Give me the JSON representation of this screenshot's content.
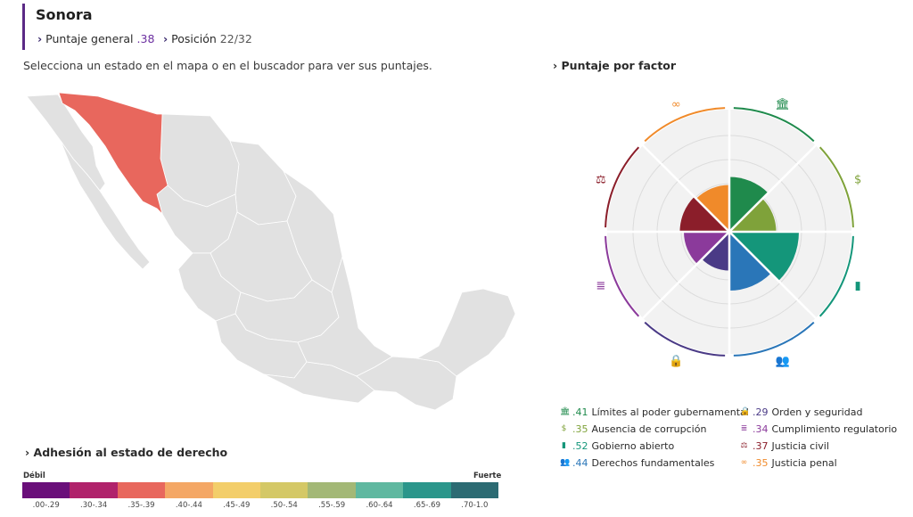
{
  "header": {
    "state_name": "Sonora",
    "overall_label": "Puntaje general",
    "overall_value": ".38",
    "position_label": "Posición",
    "position_value": "22/32"
  },
  "instruction": "Selecciona un estado en el mapa o en el buscador para ver sus puntajes.",
  "factors_heading": "Puntaje por factor",
  "adhesion_heading": "Adhesión al estado de derecho",
  "scale": {
    "weak_label": "Débil",
    "strong_label": "Fuerte",
    "bins": [
      {
        "label": ".00-.29",
        "color": "#6a0f7a"
      },
      {
        "label": ".30-.34",
        "color": "#b0226b"
      },
      {
        "label": ".35-.39",
        "color": "#e8675d"
      },
      {
        "label": ".40-.44",
        "color": "#f4a765"
      },
      {
        "label": ".45-.49",
        "color": "#f3ce6a"
      },
      {
        "label": ".50-.54",
        "color": "#d4c866"
      },
      {
        "label": ".55-.59",
        "color": "#a3b876"
      },
      {
        "label": ".60-.64",
        "color": "#5fb8a0"
      },
      {
        "label": ".65-.69",
        "color": "#2b968b"
      },
      {
        "label": ".70-1.0",
        "color": "#2c6b73"
      }
    ]
  },
  "map": {
    "highlight_color": "#e8675d",
    "base_color": "#e1e1e1",
    "border_color": "#ffffff"
  },
  "factors": [
    {
      "value": ".41",
      "label": "Límites al poder gubernamental",
      "color": "#1f8a4c",
      "icon": "building-icon"
    },
    {
      "value": ".35",
      "label": "Ausencia de corrupción",
      "color": "#7fa23a",
      "icon": "money-bag-icon"
    },
    {
      "value": ".52",
      "label": "Gobierno abierto",
      "color": "#14967a",
      "icon": "door-icon"
    },
    {
      "value": ".44",
      "label": "Derechos fundamentales",
      "color": "#2a76b8",
      "icon": "people-icon"
    },
    {
      "value": ".29",
      "label": "Orden y seguridad",
      "color": "#4a3a86",
      "icon": "lock-icon"
    },
    {
      "value": ".34",
      "label": "Cumplimiento regulatorio",
      "color": "#8b3a9b",
      "icon": "clipboard-icon"
    },
    {
      "value": ".37",
      "label": "Justicia civil",
      "color": "#8b1e2a",
      "icon": "scales-icon"
    },
    {
      "value": ".35",
      "label": "Justicia penal",
      "color": "#f08a2a",
      "icon": "handcuffs-icon"
    }
  ]
}
